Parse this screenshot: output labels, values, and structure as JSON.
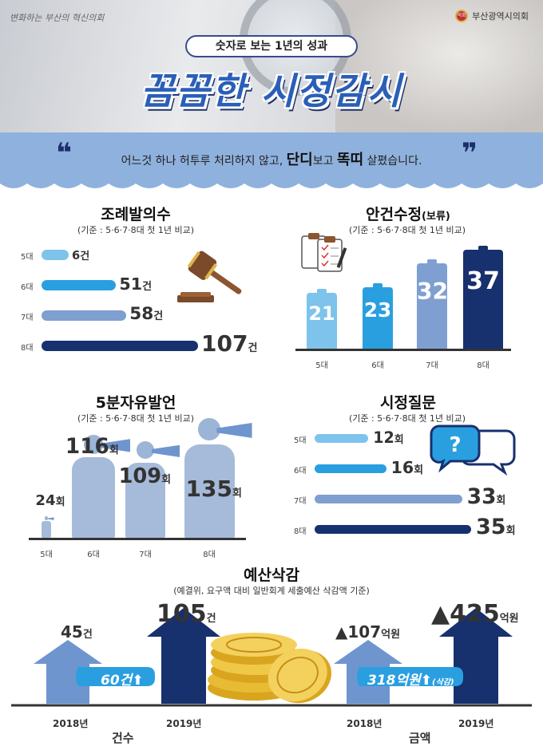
{
  "header": {
    "logo_text": "변화하는 부산의 혁신의회",
    "council_name": "부산광역시의회",
    "seal_text": "의회",
    "subtitle": "숫자로 보는 1년의 성과",
    "title": "꼼꼼한 시정감시"
  },
  "quote": {
    "part1": "어느것 하나 허투루 처리하지 않고, ",
    "em1": "단디",
    "part2": "보고 ",
    "em2": "똑띠",
    "part3": " 살폈습니다."
  },
  "ordinance": {
    "title": "조례발의수",
    "subtitle": "(기준 : 5·6·7·8대 첫 1년 비교)",
    "rows": [
      {
        "label": "5대",
        "value": "6",
        "unit": "건",
        "num": 6
      },
      {
        "label": "6대",
        "value": "51",
        "unit": "건",
        "num": 51
      },
      {
        "label": "7대",
        "value": "58",
        "unit": "건",
        "num": 58
      },
      {
        "label": "8대",
        "value": "107",
        "unit": "건",
        "num": 107
      }
    ],
    "colors": [
      "#7dc3ec",
      "#2a9fe0",
      "#7f9fd1",
      "#17306e"
    ]
  },
  "amendment": {
    "title": "안건수정",
    "title_suffix": "(보류)",
    "subtitle": "(기준 : 5·6·7·8대 첫 1년 비교)",
    "bars": [
      {
        "label": "5대",
        "value": "21",
        "num": 21
      },
      {
        "label": "6대",
        "value": "23",
        "num": 23
      },
      {
        "label": "7대",
        "value": "32",
        "num": 32
      },
      {
        "label": "8대",
        "value": "37",
        "num": 37
      }
    ],
    "colors": [
      "#7dc3ec",
      "#2a9fe0",
      "#7f9fd1",
      "#17306e"
    ]
  },
  "speech": {
    "title": "5분자유발언",
    "subtitle": "(기준 : 5·6·7·8대 첫 1년 비교)",
    "items": [
      {
        "label": "5대",
        "value": "24",
        "unit": "회",
        "num": 24
      },
      {
        "label": "6대",
        "value": "116",
        "unit": "회",
        "num": 116
      },
      {
        "label": "7대",
        "value": "109",
        "unit": "회",
        "num": 109
      },
      {
        "label": "8대",
        "value": "135",
        "unit": "회",
        "num": 135
      }
    ]
  },
  "question": {
    "title": "시정질문",
    "subtitle": "(기준 : 5·6·7·8대 첫 1년 비교)",
    "rows": [
      {
        "label": "5대",
        "value": "12",
        "unit": "회",
        "num": 12
      },
      {
        "label": "6대",
        "value": "16",
        "unit": "회",
        "num": 16
      },
      {
        "label": "7대",
        "value": "33",
        "unit": "회",
        "num": 33
      },
      {
        "label": "8대",
        "value": "35",
        "unit": "회",
        "num": 35
      }
    ],
    "colors": [
      "#7dc3ec",
      "#2a9fe0",
      "#7f9fd1",
      "#17306e"
    ]
  },
  "budget": {
    "title": "예산삭감",
    "subtitle": "(예결위, 요구액 대비 일반회계 세출예산 삭감액 기준)",
    "count": {
      "group_label": "건수",
      "y2018": {
        "year": "2018년",
        "value": "45",
        "unit": "건"
      },
      "y2019": {
        "year": "2019년",
        "value": "105",
        "unit": "건"
      },
      "increase": "60건",
      "up_glyph": "⬆"
    },
    "amount": {
      "group_label": "금액",
      "y2018": {
        "year": "2018년",
        "prefix": "▲",
        "value": "107",
        "unit": "억원"
      },
      "y2019": {
        "year": "2019년",
        "prefix": "▲",
        "value": "425",
        "unit": "억원"
      },
      "increase": "318억원",
      "up_glyph": "⬆",
      "note": "(삭감)"
    }
  }
}
